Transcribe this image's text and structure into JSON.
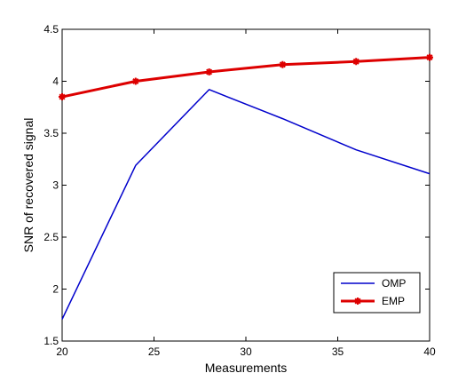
{
  "chart_data": {
    "type": "line",
    "title": "",
    "xlabel": "Measurements",
    "ylabel": "SNR of recovered signal",
    "xlim": [
      20,
      40
    ],
    "ylim": [
      1.5,
      4.5
    ],
    "xticks": [
      20,
      25,
      30,
      35,
      40
    ],
    "yticks": [
      1.5,
      2,
      2.5,
      3,
      3.5,
      4,
      4.5
    ],
    "grid": false,
    "legend_position": "bottom-right",
    "x": [
      20,
      24,
      28,
      32,
      36,
      40
    ],
    "series": [
      {
        "name": "OMP",
        "color": "#0000cc",
        "marker": "none",
        "values": [
          1.71,
          3.19,
          3.92,
          3.64,
          3.34,
          3.11
        ]
      },
      {
        "name": "EMP",
        "color": "#dd0000",
        "marker": "star",
        "values": [
          3.85,
          4.0,
          4.09,
          4.16,
          4.19,
          4.23
        ]
      }
    ]
  }
}
